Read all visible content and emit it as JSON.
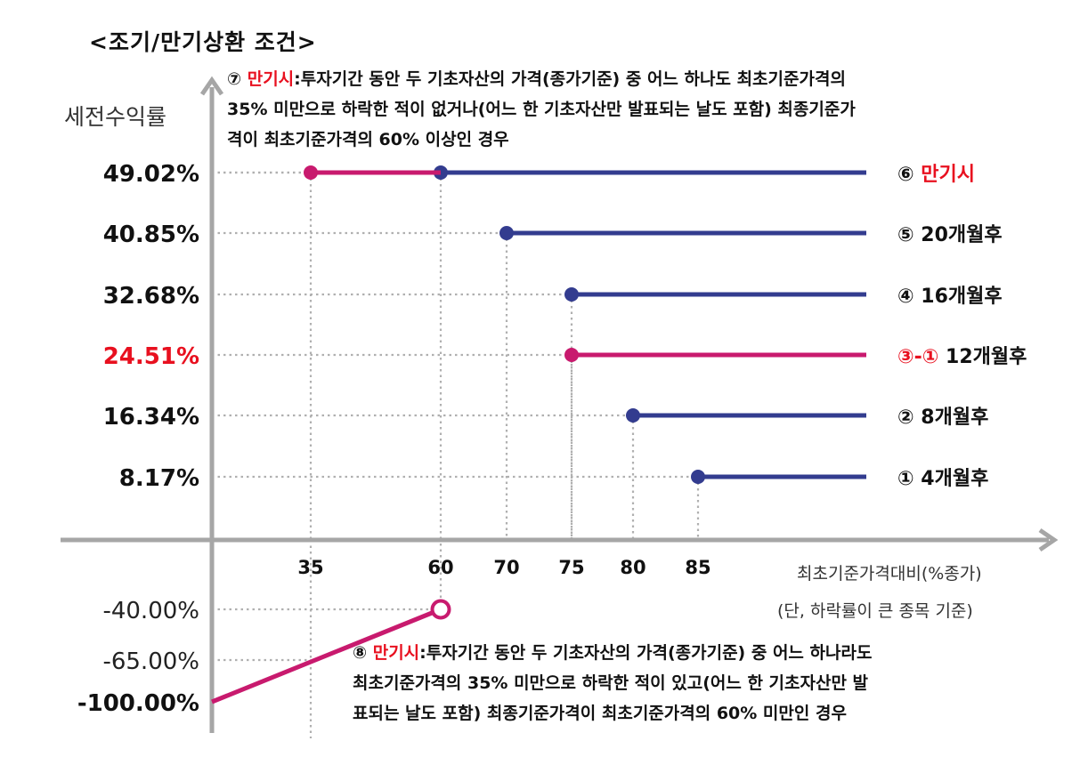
{
  "title": "<조기/만기상환 조건>",
  "notes": {
    "maturity_gain": {
      "marker": "⑦",
      "label": "만기시",
      "lines": [
        ":투자기간 동안 두 기초자산의 가격(종가기준) 중 어느 하나도 최초기준가격의",
        "35% 미만으로 하락한 적이 없거나(어느 한 기초자산만 발표되는 날도 포함) 최종기준가",
        "격이 최초기준가격의 60% 이상인 경우"
      ]
    },
    "maturity_loss": {
      "marker": "⑧",
      "label": "만기시",
      "lines": [
        ":투자기간 동안 두 기초자산의 가격(종가기준) 중 어느 하나라도",
        "최초기준가격의 35% 미만으로 하락한 적이 있고(어느 한 기초자산만 발",
        "표되는 날도 포함) 최종기준가격이 최초기준가격의 60% 미만인 경우"
      ]
    }
  },
  "chart_data": {
    "type": "line",
    "title": "<조기/만기상환 조건>",
    "ylabel": "세전수익률",
    "xlabel": "최초기준가격대비(%종가)",
    "xlabel_note": "(단, 하락률이 큰 종목 기준)",
    "x_ticks": [
      "35",
      "60",
      "70",
      "75",
      "80",
      "85"
    ],
    "y_ticks": [
      {
        "value": 49.02,
        "label": "49.02%",
        "color": "#111111",
        "bold": true
      },
      {
        "value": 40.85,
        "label": "40.85%",
        "color": "#111111",
        "bold": true
      },
      {
        "value": 32.68,
        "label": "32.68%",
        "color": "#111111",
        "bold": true
      },
      {
        "value": 24.51,
        "label": "24.51%",
        "color": "#e8101f",
        "bold": true
      },
      {
        "value": 16.34,
        "label": "16.34%",
        "color": "#111111",
        "bold": true
      },
      {
        "value": 8.17,
        "label": "8.17%",
        "color": "#111111",
        "bold": true
      },
      {
        "value": -40.0,
        "label": "-40.00%",
        "color": "#222222",
        "bold": false
      },
      {
        "value": -65.0,
        "label": "-65.00%",
        "color": "#222222",
        "bold": false
      },
      {
        "value": -100.0,
        "label": "-100.00%",
        "color": "#111111",
        "bold": true
      }
    ],
    "series": [
      {
        "name": "⑥ 만기시",
        "marker": "⑥",
        "label": "만기시",
        "label_color": "#e8101f",
        "y": 49.02,
        "x_from": 60,
        "color": "#333c8f"
      },
      {
        "name": "⑦ 만기시",
        "marker": "⑦",
        "y": 49.02,
        "x_from": 35,
        "x_to": 60,
        "color": "#c81a6e"
      },
      {
        "name": "⑤ 20개월후",
        "marker": "⑤",
        "label": "20개월후",
        "y": 40.85,
        "x_from": 70,
        "color": "#333c8f"
      },
      {
        "name": "④ 16개월후",
        "marker": "④",
        "label": "16개월후",
        "y": 32.68,
        "x_from": 75,
        "color": "#333c8f"
      },
      {
        "name": "③-① 12개월후",
        "marker": "③-①",
        "marker_color": "#e8101f",
        "label": "12개월후",
        "y": 24.51,
        "x_from": 75,
        "color": "#c81a6e"
      },
      {
        "name": "② 8개월후",
        "marker": "②",
        "label": "8개월후",
        "y": 16.34,
        "x_from": 80,
        "color": "#333c8f"
      },
      {
        "name": "① 4개월후",
        "marker": "①",
        "label": "4개월후",
        "y": 8.17,
        "x_from": 85,
        "color": "#333c8f"
      },
      {
        "name": "⑧ 만기시",
        "marker": "⑧",
        "points": [
          [
            0,
            -100.0
          ],
          [
            60,
            -40.0
          ]
        ],
        "open_end": true,
        "color": "#c81a6e"
      }
    ],
    "grid": "dotted guide lines",
    "colors": {
      "navy": "#333c8f",
      "magenta": "#c81a6e",
      "red": "#e8101f",
      "axis": "#a6a6a6",
      "guide": "#b0b0b0"
    }
  }
}
